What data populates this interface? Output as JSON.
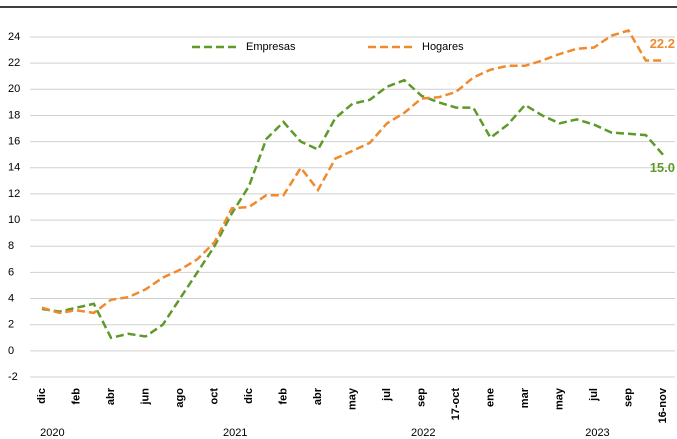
{
  "chart_data": {
    "type": "line",
    "categories": [
      "dic",
      null,
      "feb",
      null,
      "abr",
      null,
      "jun",
      null,
      "ago",
      null,
      "oct",
      null,
      "dic",
      null,
      "feb",
      null,
      "abr",
      null,
      "may",
      null,
      "jul",
      null,
      "sep",
      null,
      "17-oct",
      null,
      "ene",
      null,
      "mar",
      null,
      "may",
      null,
      "jul",
      null,
      "sep",
      null,
      "16-nov"
    ],
    "year_labels": [
      "2020",
      "2021",
      "2022",
      "2023"
    ],
    "series": [
      {
        "name": "Empresas",
        "color": "#5e9a2a",
        "values": [
          3.2,
          3.0,
          3.3,
          3.6,
          1.0,
          1.3,
          1.1,
          2.0,
          4.0,
          6.0,
          8.0,
          10.5,
          12.6,
          16.2,
          17.5,
          16.0,
          15.4,
          17.8,
          18.9,
          19.2,
          20.2,
          20.7,
          19.5,
          19.0,
          18.6,
          18.6,
          16.3,
          17.3,
          18.8,
          18.0,
          17.4,
          17.7,
          17.3,
          16.7,
          16.6,
          16.5,
          15.0
        ],
        "value_labels": [
          null,
          null,
          null,
          null,
          null,
          null,
          null,
          null,
          null,
          null,
          null,
          null,
          null,
          null,
          null,
          null,
          null,
          null,
          null,
          null,
          null,
          null,
          null,
          null,
          null,
          null,
          null,
          null,
          null,
          null,
          null,
          null,
          null,
          null,
          null,
          null,
          "15.0"
        ]
      },
      {
        "name": "Hogares",
        "color": "#f08a2c",
        "values": [
          3.3,
          2.9,
          3.1,
          2.9,
          3.9,
          4.1,
          4.7,
          5.6,
          6.2,
          7.0,
          8.3,
          10.9,
          11.0,
          11.9,
          11.9,
          14.0,
          12.3,
          14.7,
          15.3,
          15.9,
          17.4,
          18.2,
          19.3,
          19.4,
          19.8,
          20.9,
          21.5,
          21.8,
          21.8,
          22.2,
          22.7,
          23.1,
          23.2,
          24.1,
          24.5,
          22.2,
          22.2
        ],
        "value_labels": [
          null,
          null,
          null,
          null,
          null,
          null,
          null,
          null,
          null,
          null,
          null,
          null,
          null,
          null,
          null,
          null,
          null,
          null,
          null,
          null,
          null,
          null,
          null,
          null,
          null,
          null,
          null,
          null,
          null,
          null,
          null,
          null,
          null,
          null,
          null,
          null,
          "22.2"
        ]
      }
    ],
    "ylim": [
      -2,
      24
    ],
    "yticks": [
      -2,
      0,
      2,
      4,
      6,
      8,
      10,
      12,
      14,
      16,
      18,
      20,
      22,
      24
    ],
    "grid": true,
    "legend": "top"
  }
}
